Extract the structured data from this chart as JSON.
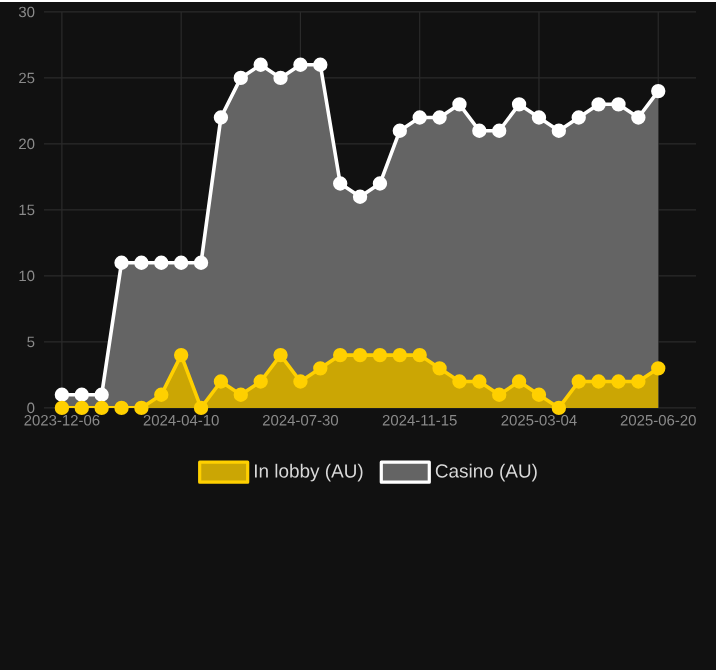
{
  "chart_data": {
    "type": "area",
    "categories": [
      "2023-12-06",
      null,
      null,
      null,
      null,
      null,
      "2024-04-10",
      null,
      null,
      null,
      null,
      null,
      "2024-07-30",
      null,
      null,
      null,
      null,
      null,
      "2024-11-15",
      null,
      null,
      null,
      null,
      null,
      "2025-03-04",
      null,
      null,
      null,
      null,
      null,
      "2025-06-20"
    ],
    "series": [
      {
        "name": "In lobby (AU)",
        "color": "#ffd000",
        "values": [
          0,
          0,
          0,
          0,
          0,
          1,
          4,
          0,
          2,
          1,
          2,
          4,
          2,
          3,
          4,
          4,
          4,
          4,
          4,
          3,
          2,
          2,
          1,
          2,
          1,
          0,
          2,
          2,
          2,
          2,
          3
        ]
      },
      {
        "name": "Casino (AU)",
        "color": "#ffffff",
        "values": [
          1,
          1,
          1,
          11,
          11,
          11,
          11,
          11,
          22,
          25,
          26,
          25,
          26,
          26,
          17,
          16,
          17,
          21,
          22,
          22,
          23,
          21,
          21,
          23,
          22,
          21,
          22,
          23,
          23,
          22,
          24
        ]
      }
    ],
    "ylim": [
      0,
      30
    ],
    "yticks": [
      0,
      5,
      10,
      15,
      20,
      25,
      30
    ],
    "grid": true,
    "legend": "bottom",
    "marker": "circle",
    "line_style": "solid"
  }
}
